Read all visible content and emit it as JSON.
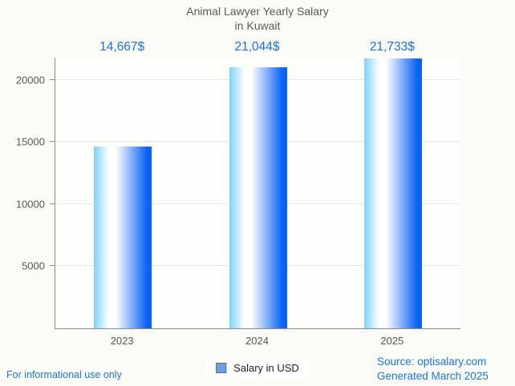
{
  "title": {
    "line1": "Animal Lawyer Yearly Salary",
    "line2": "in Kuwait"
  },
  "legend": {
    "label": "Salary in USD"
  },
  "footer": {
    "left": "For informational use only",
    "source_line1": "Source: optisalary.com",
    "source_line2": "Generated March 2025"
  },
  "colors": {
    "page_bg": "#fbfbf8",
    "plot_bg": "#fefefc",
    "title_text": "#58595b",
    "axis_line": "#8c8c8c",
    "gridline": "#e6e6e6",
    "axis_label": "#56575a",
    "value_label": "#1b6fe2",
    "footer_text": "#1a73e8",
    "bar_gradient_left": "#7ed2fc",
    "bar_gradient_right": "#0a63f6",
    "legend_fill": "#6d9eea",
    "legend_border": "#55687e"
  },
  "chart_data": {
    "type": "bar",
    "title": "Animal Lawyer Yearly Salary in Kuwait",
    "categories": [
      "2023",
      "2024",
      "2025"
    ],
    "values": [
      14667,
      21044,
      21733
    ],
    "value_labels": [
      "14,667$",
      "21,044$",
      "21,733$"
    ],
    "series_name": "Salary in USD",
    "xlabel": "",
    "ylabel": "",
    "ylim": [
      0,
      21800
    ],
    "yticks": [
      5000,
      10000,
      15000,
      20000
    ],
    "grid": true,
    "legend_position": "bottom"
  }
}
